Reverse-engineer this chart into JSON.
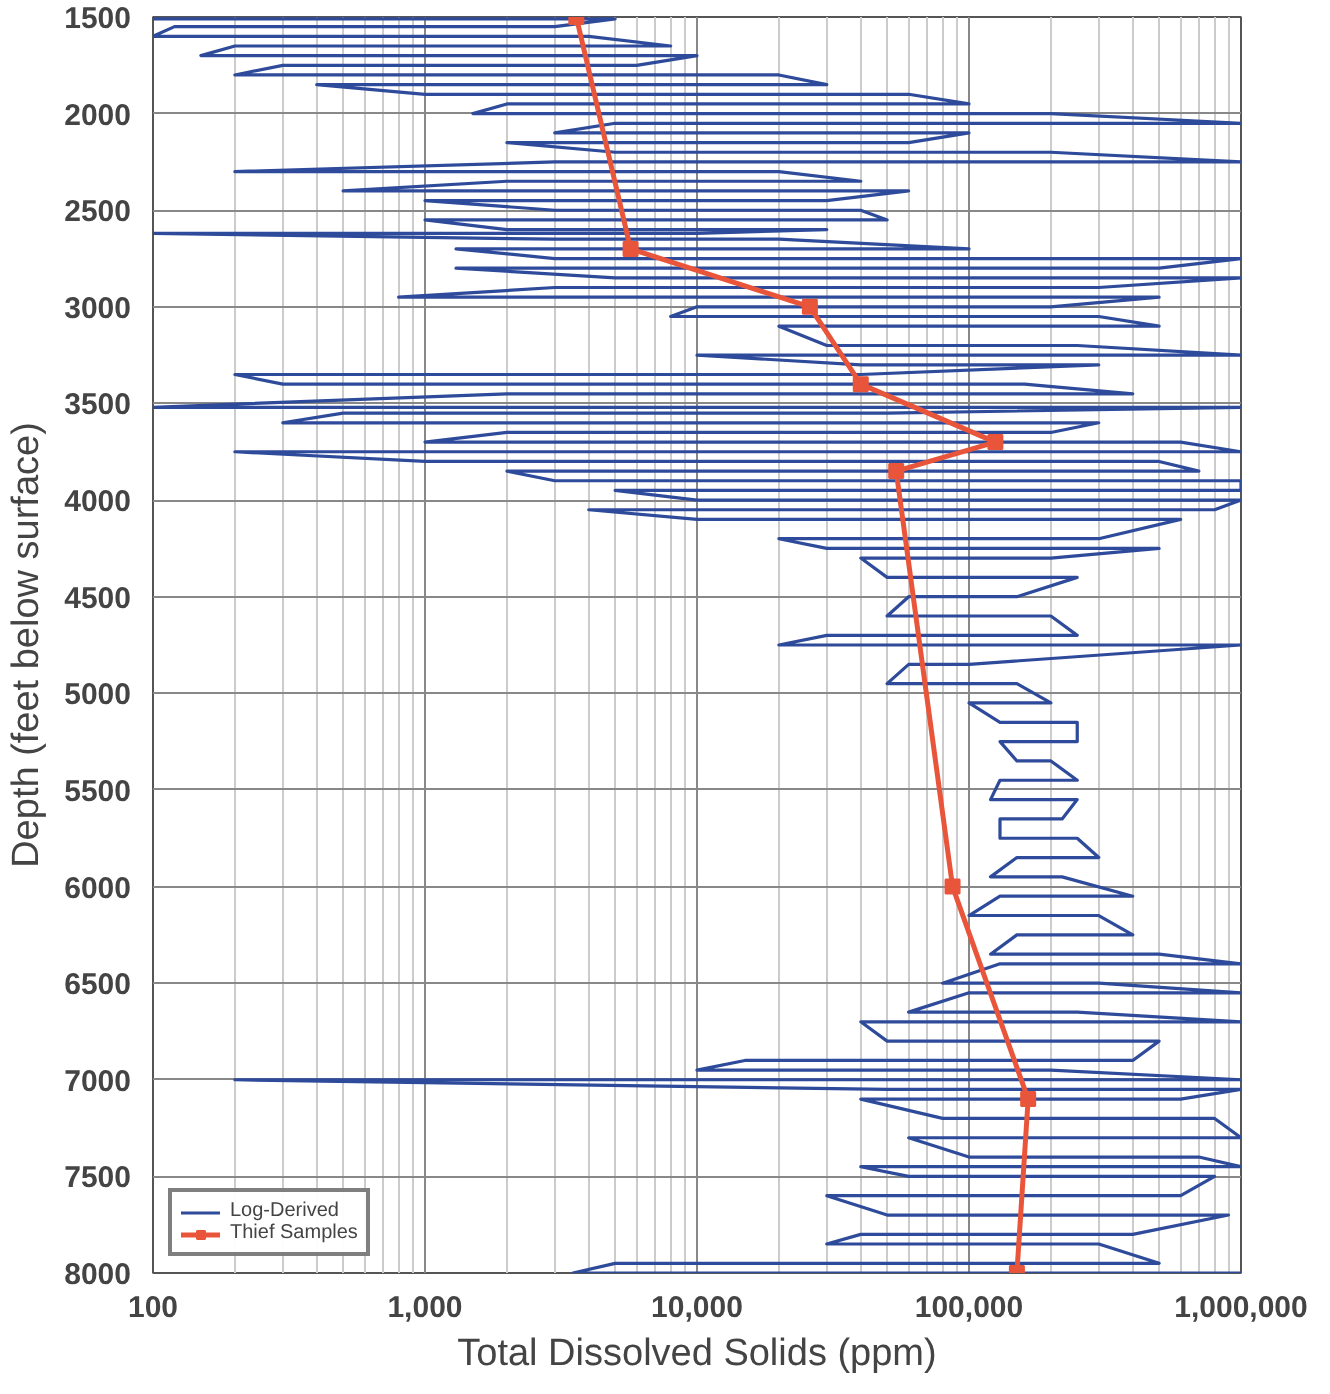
{
  "chart_data": {
    "type": "line",
    "xlabel": "Total Dissolved Solids (ppm)",
    "ylabel": "Depth (feet below surface)",
    "log": "x",
    "xlim": [
      100,
      1000000
    ],
    "xticks": [
      100,
      {
        "value": 1000,
        "label": "1,000"
      },
      {
        "value": 10000,
        "label": "10,000"
      },
      {
        "value": 100000,
        "label": "100,000"
      },
      {
        "value": 1000000,
        "label": "1,000,000"
      }
    ],
    "ylim": [
      8000,
      1500
    ],
    "yticks": [
      1500,
      2000,
      2500,
      3000,
      3500,
      4000,
      4500,
      5000,
      5500,
      6000,
      6500,
      7000,
      7500,
      8000
    ],
    "grid": true,
    "legend": "bottom left",
    "series": [
      {
        "name": "Log-Derived",
        "color": "#2e4a9a",
        "marker": "none",
        "x": [
          100,
          5000,
          3000,
          120,
          100,
          4000,
          8000,
          200,
          150,
          10000,
          6000,
          300,
          200,
          20000,
          30000,
          400,
          1000,
          60000,
          100000,
          2000,
          1500,
          200000,
          1000000,
          5000,
          3000,
          100000,
          60000,
          2000,
          5000,
          200000,
          1000000,
          3000,
          200,
          20000,
          40000,
          2000,
          500,
          60000,
          30000,
          1000,
          3000,
          40000,
          50000,
          1000,
          2000,
          30000,
          10000,
          100,
          3000,
          20000,
          100000,
          1300,
          3000,
          1000000,
          500000,
          1300,
          5000,
          1000000,
          300000,
          3000,
          800,
          500000,
          200000,
          10000,
          8000,
          300000,
          500000,
          20000,
          30000,
          250000,
          1000000,
          10000,
          40000,
          300000,
          40000,
          200,
          300,
          160000,
          400000,
          2000,
          100,
          1000000,
          50000,
          500,
          300,
          300000,
          200000,
          2000,
          1000,
          600000,
          1000000,
          200,
          1000,
          500000,
          700000,
          2000,
          3000,
          1000000,
          1000000,
          5000,
          10000,
          1000000,
          800000,
          4000,
          10000,
          600000,
          300000,
          20000,
          30000,
          500000,
          200000,
          40000,
          50000,
          250000,
          150000,
          60000,
          50000,
          200000,
          250000,
          30000,
          20000,
          1000000,
          100000,
          60000,
          50000,
          150000,
          200000,
          100000,
          130000,
          250000,
          250000,
          130000,
          150000,
          200000,
          250000,
          130000,
          120000,
          250000,
          220000,
          130000,
          130000,
          250000,
          300000,
          150000,
          120000,
          220000,
          400000,
          130000,
          100000,
          300000,
          400000,
          150000,
          120000,
          500000,
          1000000,
          130000,
          80000,
          300000,
          1000000,
          100000,
          60000,
          250000,
          1000000,
          40000,
          50000,
          500000,
          400000,
          15000,
          10000,
          200000,
          1000000,
          200,
          50000,
          1000000,
          600000,
          40000,
          80000,
          800000,
          1000000,
          60000,
          100000,
          700000,
          1000000,
          40000,
          60000,
          800000,
          600000,
          30000,
          50000,
          900000,
          400000,
          40000,
          30000,
          300000,
          500000,
          5000,
          3500,
          1000000
        ],
        "values": [
          1510,
          1510,
          1550,
          1550,
          1600,
          1600,
          1650,
          1650,
          1700,
          1700,
          1750,
          1750,
          1800,
          1800,
          1850,
          1850,
          1900,
          1900,
          1950,
          1950,
          2000,
          2000,
          2050,
          2050,
          2100,
          2100,
          2150,
          2150,
          2200,
          2200,
          2250,
          2250,
          2300,
          2300,
          2350,
          2350,
          2400,
          2400,
          2450,
          2450,
          2500,
          2500,
          2550,
          2550,
          2600,
          2600,
          2620,
          2620,
          2650,
          2650,
          2700,
          2700,
          2750,
          2750,
          2800,
          2800,
          2850,
          2850,
          2900,
          2900,
          2950,
          2950,
          3000,
          3000,
          3050,
          3050,
          3100,
          3100,
          3200,
          3200,
          3250,
          3250,
          3300,
          3300,
          3350,
          3350,
          3400,
          3400,
          3450,
          3450,
          3520,
          3520,
          3550,
          3550,
          3600,
          3600,
          3650,
          3650,
          3700,
          3700,
          3750,
          3750,
          3800,
          3800,
          3850,
          3850,
          3900,
          3900,
          3950,
          3950,
          4000,
          4000,
          4050,
          4050,
          4100,
          4100,
          4200,
          4200,
          4250,
          4250,
          4300,
          4300,
          4400,
          4400,
          4500,
          4500,
          4600,
          4600,
          4700,
          4700,
          4750,
          4750,
          4850,
          4850,
          4950,
          4950,
          5050,
          5050,
          5150,
          5150,
          5250,
          5250,
          5350,
          5350,
          5450,
          5450,
          5550,
          5550,
          5650,
          5650,
          5750,
          5750,
          5850,
          5850,
          5950,
          5950,
          6050,
          6050,
          6150,
          6150,
          6250,
          6250,
          6350,
          6350,
          6400,
          6400,
          6500,
          6500,
          6550,
          6550,
          6650,
          6650,
          6700,
          6700,
          6800,
          6800,
          6900,
          6900,
          6950,
          6950,
          7000,
          7000,
          7050,
          7050,
          7100,
          7100,
          7200,
          7200,
          7300,
          7300,
          7400,
          7400,
          7450,
          7450,
          7500,
          7500,
          7600,
          7600,
          7700,
          7700,
          7800,
          7800,
          7850,
          7850,
          7950,
          7950,
          8000,
          8000
        ]
      },
      {
        "name": "Thief Samples",
        "color": "#e8553a",
        "marker": "square",
        "x": [
          3600,
          5700,
          26000,
          40000,
          125000,
          54000,
          87000,
          165000,
          150000
        ],
        "values": [
          1500,
          2700,
          3000,
          3400,
          3700,
          3850,
          6000,
          7100,
          8000
        ]
      }
    ]
  }
}
